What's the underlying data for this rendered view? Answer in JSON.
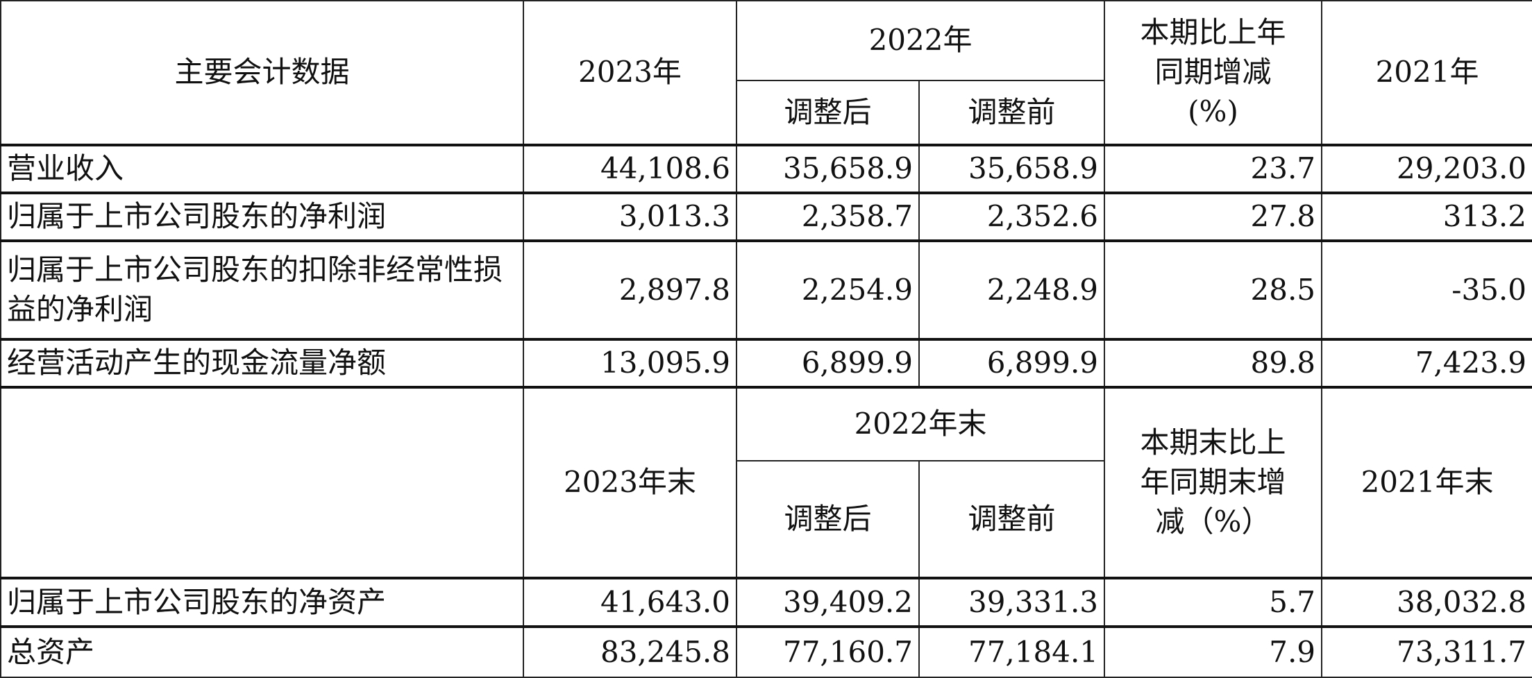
{
  "header1": {
    "label": "主要会计数据",
    "col_current": "2023年",
    "col_prev_group": "2022年",
    "col_prev_adjusted": "调整后",
    "col_prev_before": "调整前",
    "col_change": "本期比上年同期增减(%)",
    "col_older": "2021年"
  },
  "rows1": [
    {
      "label": "营业收入",
      "v2023": "44,108.6",
      "adj": "35,658.9",
      "before": "35,658.9",
      "change": "23.7",
      "v2021": "29,203.0"
    },
    {
      "label": "归属于上市公司股东的净利润",
      "v2023": "3,013.3",
      "adj": "2,358.7",
      "before": "2,352.6",
      "change": "27.8",
      "v2021": "313.2"
    },
    {
      "label": "归属于上市公司股东的扣除非经常性损益的净利润",
      "v2023": "2,897.8",
      "adj": "2,254.9",
      "before": "2,248.9",
      "change": "28.5",
      "v2021": "-35.0"
    },
    {
      "label": "经营活动产生的现金流量净额",
      "v2023": "13,095.9",
      "adj": "6,899.9",
      "before": "6,899.9",
      "change": "89.8",
      "v2021": "7,423.9"
    }
  ],
  "header2": {
    "label": "",
    "col_current": "2023年末",
    "col_prev_group": "2022年末",
    "col_prev_adjusted": "调整后",
    "col_prev_before": "调整前",
    "col_change": "本期末比上年同期末增减（%）",
    "col_older": "2021年末"
  },
  "rows2": [
    {
      "label": "归属于上市公司股东的净资产",
      "v2023": "41,643.0",
      "adj": "39,409.2",
      "before": "39,331.3",
      "change": "5.7",
      "v2021": "38,032.8"
    },
    {
      "label": "总资产",
      "v2023": "83,245.8",
      "adj": "77,160.7",
      "before": "77,184.1",
      "change": "7.9",
      "v2021": "73,311.7"
    }
  ]
}
